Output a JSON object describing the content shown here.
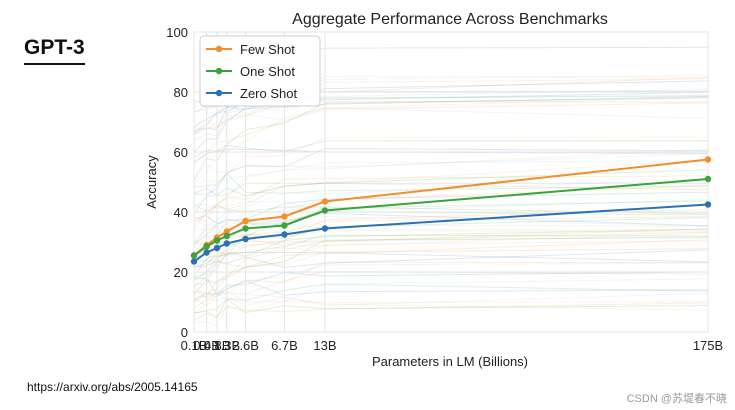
{
  "slide": {
    "title": "GPT-3",
    "source_url": "https://arxiv.org/abs/2005.14165",
    "watermark": "CSDN @苏堤春不晓"
  },
  "chart_data": {
    "type": "line",
    "title": "Aggregate Performance Across Benchmarks",
    "xlabel": "Parameters in LM (Billions)",
    "ylabel": "Accuracy",
    "ylim": [
      0,
      100
    ],
    "yticks": [
      0,
      20,
      40,
      60,
      80,
      100
    ],
    "x_scale": "sqrt",
    "x": [
      0.1,
      0.4,
      0.8,
      1.3,
      2.6,
      6.7,
      13,
      175
    ],
    "x_tick_labels": [
      "0.1B",
      "0.4B",
      "0.8B",
      "1.3B",
      "2.6B",
      "6.7B",
      "13B",
      "175B"
    ],
    "legend_position": "top-left",
    "grid": true,
    "series": [
      {
        "name": "Few Shot",
        "color": "#f28e2b",
        "values": [
          25.5,
          29.0,
          31.5,
          33.5,
          37.0,
          38.5,
          43.5,
          57.5
        ]
      },
      {
        "name": "One Shot",
        "color": "#3aa33a",
        "values": [
          25.5,
          28.5,
          30.5,
          32.0,
          34.5,
          35.5,
          40.5,
          51.0
        ]
      },
      {
        "name": "Zero Shot",
        "color": "#2a72b5",
        "values": [
          23.5,
          26.5,
          28.0,
          29.5,
          31.0,
          32.5,
          34.5,
          42.5
        ]
      }
    ]
  }
}
